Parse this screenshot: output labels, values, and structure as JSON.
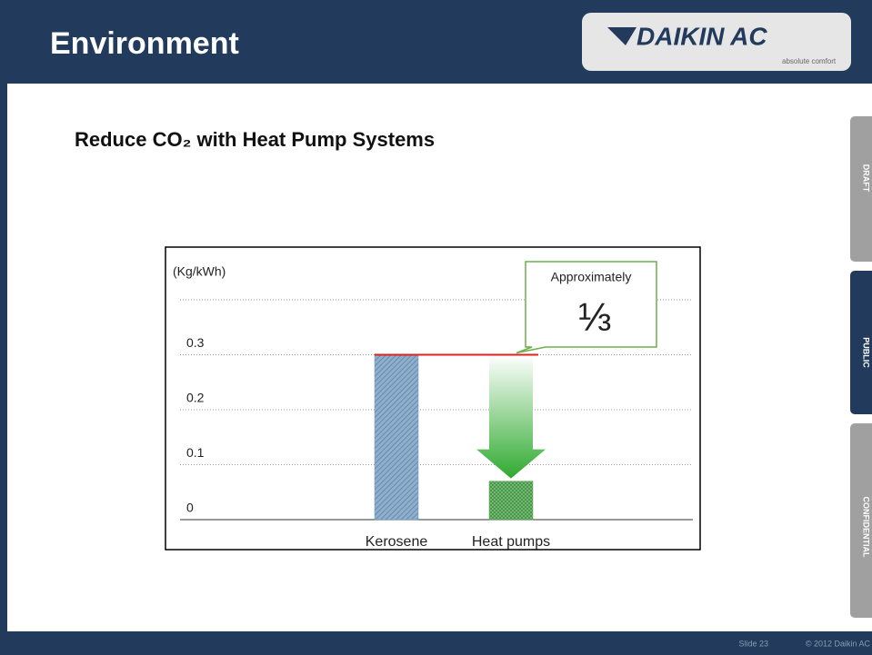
{
  "header": {
    "title": "Environment"
  },
  "logo": {
    "name": "DAIKIN AC",
    "tagline": "absolute comfort"
  },
  "subtitle": "Reduce CO₂ with Heat Pump Systems",
  "tabs": [
    "DRAFT",
    "PUBLIC",
    "CONFIDENTIAL"
  ],
  "footer": {
    "slide": "Slide 23",
    "copyright": "© 2012 Daikin AC"
  },
  "chart_data": {
    "type": "bar",
    "ylabel": "(Kg/kWh)",
    "categories": [
      "Kerosene",
      "Heat pumps"
    ],
    "values": [
      0.3,
      0.07
    ],
    "colors": [
      "#6f95b8",
      "#5fa65f"
    ],
    "ylim": [
      0,
      0.4
    ],
    "yticks": [
      0,
      0.1,
      0.2,
      0.3
    ],
    "grid": true,
    "annotations": [
      "Approximately",
      "⅓"
    ]
  }
}
